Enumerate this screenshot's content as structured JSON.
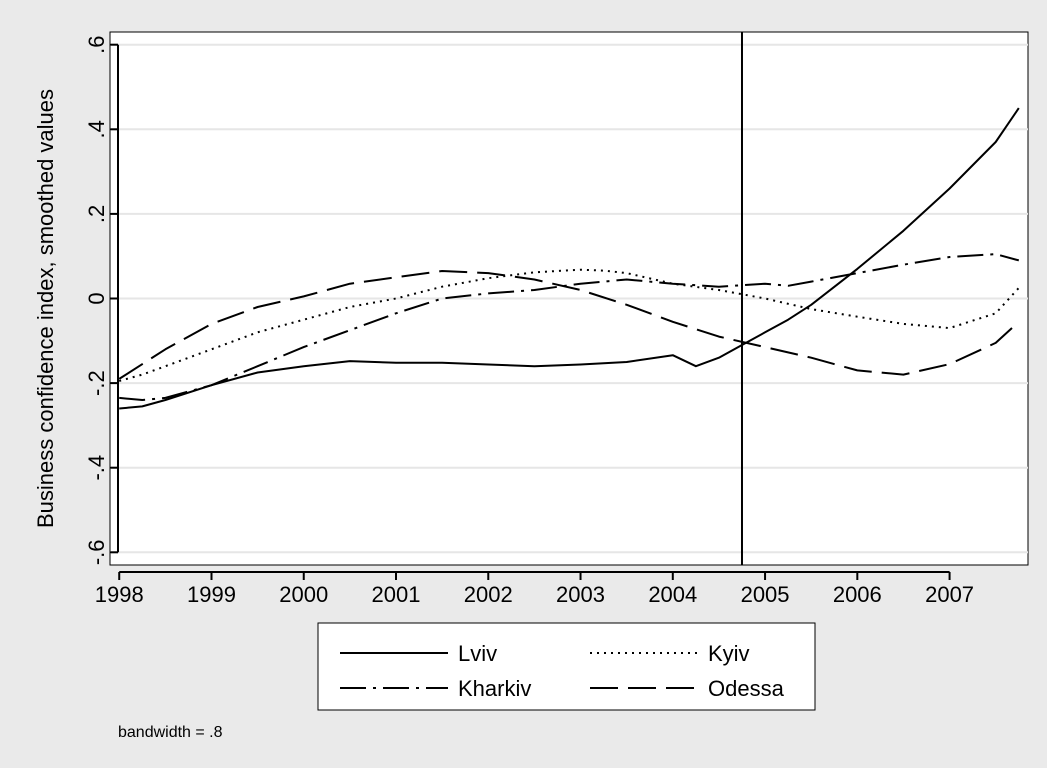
{
  "chart_data": {
    "type": "line",
    "title": "",
    "xlabel": "",
    "ylabel": "Business confidence index, smoothed values",
    "xlim": [
      1997.9,
      2007.85
    ],
    "ylim": [
      -0.63,
      0.63
    ],
    "x_ticks": [
      1998,
      1999,
      2000,
      2001,
      2002,
      2003,
      2004,
      2005,
      2006,
      2007
    ],
    "x_tick_labels": [
      "1998",
      "1999",
      "2000",
      "2001",
      "2002",
      "2003",
      "2004",
      "2005",
      "2006",
      "2007"
    ],
    "y_ticks": [
      -0.6,
      -0.4,
      -0.2,
      0,
      0.2,
      0.4,
      0.6
    ],
    "y_tick_labels": [
      "-.6",
      "-.4",
      "-.2",
      "0",
      ".2",
      ".4",
      ".6"
    ],
    "grid": true,
    "reference_line_x": 2004.75,
    "legend_position": "bottom",
    "series": [
      {
        "name": "Lviv",
        "dash": "solid",
        "x": [
          1998,
          1998.25,
          1998.5,
          1999,
          1999.5,
          2000,
          2000.5,
          2001,
          2001.5,
          2002,
          2002.5,
          2003,
          2003.5,
          2004,
          2004.25,
          2004.5,
          2004.75,
          2005,
          2005.25,
          2005.5,
          2006,
          2006.5,
          2007,
          2007.5,
          2007.75
        ],
        "y": [
          -0.26,
          -0.255,
          -0.24,
          -0.205,
          -0.175,
          -0.16,
          -0.148,
          -0.152,
          -0.152,
          -0.156,
          -0.16,
          -0.156,
          -0.15,
          -0.134,
          -0.16,
          -0.14,
          -0.11,
          -0.08,
          -0.05,
          -0.015,
          0.07,
          0.16,
          0.26,
          0.37,
          0.45
        ]
      },
      {
        "name": "Kyiv",
        "dash": "dot",
        "x": [
          1998,
          1998.25,
          1998.5,
          1999,
          1999.5,
          2000,
          2000.5,
          2001,
          2001.5,
          2002,
          2002.5,
          2003,
          2003.25,
          2003.5,
          2004,
          2004.5,
          2005,
          2005.5,
          2006,
          2006.5,
          2007,
          2007.5,
          2007.75
        ],
        "y": [
          -0.195,
          -0.18,
          -0.16,
          -0.12,
          -0.08,
          -0.05,
          -0.02,
          0.0,
          0.028,
          0.048,
          0.062,
          0.068,
          0.066,
          0.06,
          0.035,
          0.02,
          0.0,
          -0.025,
          -0.043,
          -0.06,
          -0.07,
          -0.035,
          0.025
        ]
      },
      {
        "name": "Kharkiv",
        "dash": "dashdot",
        "x": [
          1998,
          1998.25,
          1998.5,
          1999,
          1999.5,
          2000,
          2000.5,
          2001,
          2001.5,
          2002,
          2002.5,
          2003,
          2003.5,
          2004,
          2004.5,
          2005,
          2005.25,
          2005.5,
          2006,
          2006.5,
          2007,
          2007.5,
          2007.75
        ],
        "y": [
          -0.235,
          -0.24,
          -0.235,
          -0.205,
          -0.16,
          -0.115,
          -0.075,
          -0.035,
          0.0,
          0.012,
          0.02,
          0.035,
          0.045,
          0.035,
          0.028,
          0.035,
          0.03,
          0.04,
          0.06,
          0.08,
          0.098,
          0.105,
          0.09
        ]
      },
      {
        "name": "Odessa",
        "dash": "longdash",
        "x": [
          1998,
          1998.5,
          1999,
          1999.5,
          2000,
          2000.5,
          2001,
          2001.5,
          2002,
          2002.5,
          2003,
          2003.5,
          2004,
          2004.5,
          2005,
          2005.5,
          2006,
          2006.5,
          2007,
          2007.5,
          2007.75
        ],
        "y": [
          -0.19,
          -0.12,
          -0.06,
          -0.02,
          0.005,
          0.035,
          0.05,
          0.065,
          0.06,
          0.045,
          0.02,
          -0.015,
          -0.055,
          -0.09,
          -0.115,
          -0.14,
          -0.17,
          -0.18,
          -0.155,
          -0.105,
          -0.055
        ]
      }
    ],
    "note": "bandwidth = .8"
  }
}
